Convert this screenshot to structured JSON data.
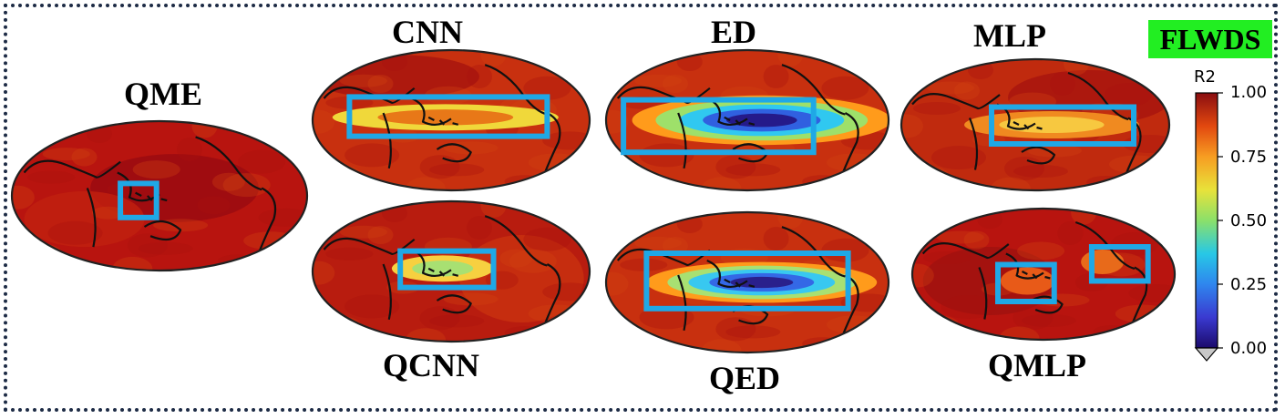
{
  "panels": [
    {
      "id": "qme",
      "label": "QME"
    },
    {
      "id": "cnn",
      "label": "CNN"
    },
    {
      "id": "ed",
      "label": "ED"
    },
    {
      "id": "mlp",
      "label": "MLP"
    },
    {
      "id": "qcnn",
      "label": "QCNN"
    },
    {
      "id": "qed",
      "label": "QED"
    },
    {
      "id": "qmlp",
      "label": "QMLP"
    }
  ],
  "variable_badge": {
    "text": "FLWDS",
    "color": "#22ee22"
  },
  "colorbar": {
    "title": "R2",
    "ticks": [
      "1.00",
      "0.75",
      "0.50",
      "0.25",
      "0.00"
    ],
    "range": [
      0,
      1
    ],
    "extend": "min",
    "colormap": "jet"
  },
  "colors": {
    "highlight_box": "#1fa8e6",
    "frame": "#1d2b45",
    "map_background": "#b8140f"
  }
}
